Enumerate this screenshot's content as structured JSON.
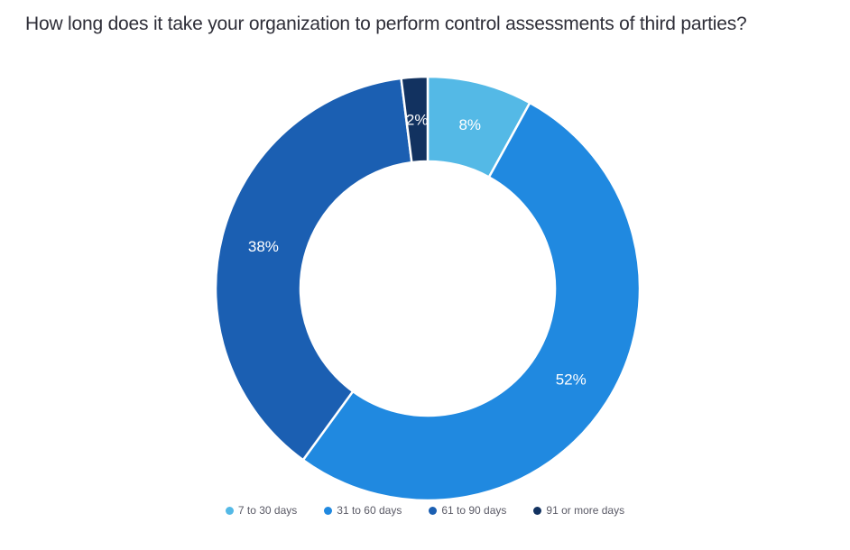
{
  "header": {
    "title": "How long does it take your organization to perform control assessments of third parties?"
  },
  "chart_data": {
    "type": "pie",
    "subtype": "donut",
    "title": "How long does it take your organization to perform control assessments of third parties?",
    "categories": [
      "7 to 30 days",
      "31 to 60 days",
      "61 to 90 days",
      "91 or more days"
    ],
    "values": [
      8,
      52,
      38,
      2
    ],
    "unit": "%",
    "slice_labels": [
      "8%",
      "52%",
      "38%",
      "2%"
    ],
    "colors": [
      "#54b9e6",
      "#2089e0",
      "#1b5fb2",
      "#123260"
    ],
    "start_angle_deg": 0,
    "direction": "clockwise",
    "inner_radius_ratio": 0.6,
    "slice_label_color": "#ffffff",
    "slice_gap_color": "#ffffff",
    "legend_position": "bottom",
    "legend_text_color": "#5a5a66",
    "title_color": "#2e2e38",
    "background_color": "#ffffff"
  }
}
